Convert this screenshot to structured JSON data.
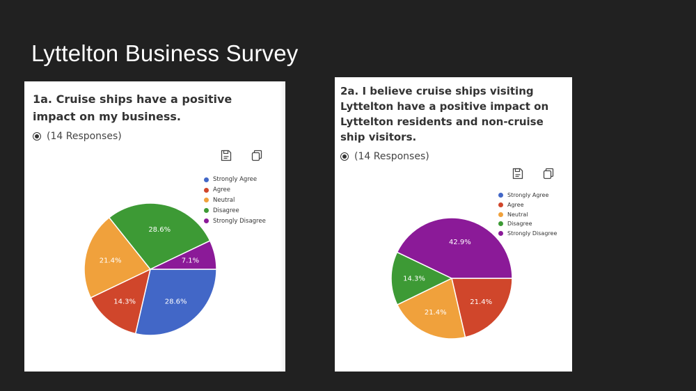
{
  "slide": {
    "title": "Lyttelton Business Survey"
  },
  "colors": {
    "strongly_agree": "#4267c7",
    "agree": "#d0462b",
    "neutral": "#f0a13c",
    "disagree": "#3d9a35",
    "strongly_disagree": "#8b1a98"
  },
  "icons": {
    "save": "save-icon",
    "copy": "copy-icon",
    "radio": "radio-selected-icon"
  },
  "chart_data": [
    {
      "type": "pie",
      "title": "1a. Cruise ships have a positive impact on my business.",
      "responses": "(14 Responses)",
      "legend": [
        "Strongly Agree",
        "Agree",
        "Neutral",
        "Disagree",
        "Strongly Disagree"
      ],
      "legend_position": "top-right",
      "slices": [
        {
          "label": "Strongly Agree",
          "value": 28.6,
          "text": "28.6%"
        },
        {
          "label": "Agree",
          "value": 14.3,
          "text": "14.3%"
        },
        {
          "label": "Neutral",
          "value": 21.4,
          "text": "21.4%"
        },
        {
          "label": "Disagree",
          "value": 28.6,
          "text": "28.6%"
        },
        {
          "label": "Strongly Disagree",
          "value": 7.1,
          "text": "7.1%"
        }
      ]
    },
    {
      "type": "pie",
      "title": "2a. I believe cruise ships visiting Lyttelton have a positive impact on Lyttelton residents and non-cruise ship visitors.",
      "responses": "(14 Responses)",
      "legend": [
        "Strongly Agree",
        "Agree",
        "Neutral",
        "Disagree",
        "Strongly Disagree"
      ],
      "legend_position": "top-right",
      "slices": [
        {
          "label": "Strongly Agree",
          "value": 0,
          "text": ""
        },
        {
          "label": "Agree",
          "value": 21.4,
          "text": "21.4%"
        },
        {
          "label": "Neutral",
          "value": 21.4,
          "text": "21.4%"
        },
        {
          "label": "Disagree",
          "value": 14.3,
          "text": "14.3%"
        },
        {
          "label": "Strongly Disagree",
          "value": 42.9,
          "text": "42.9%"
        }
      ]
    }
  ]
}
